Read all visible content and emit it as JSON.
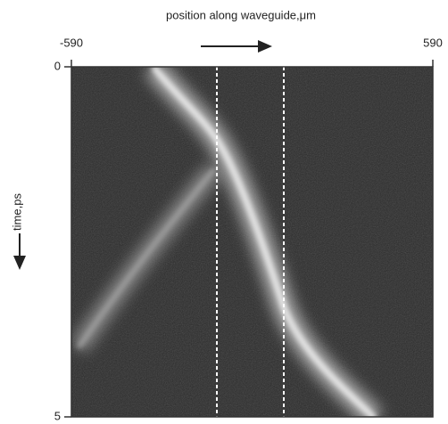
{
  "chart_data": {
    "type": "heatmap",
    "xlabel": "position along waveguide,μm",
    "ylabel": "time,ps",
    "xlim": [
      -590,
      590
    ],
    "xticks": [
      -590,
      590
    ],
    "ylim": [
      0,
      5
    ],
    "yticks": [
      0,
      5
    ],
    "y_inverted": true
  }
}
